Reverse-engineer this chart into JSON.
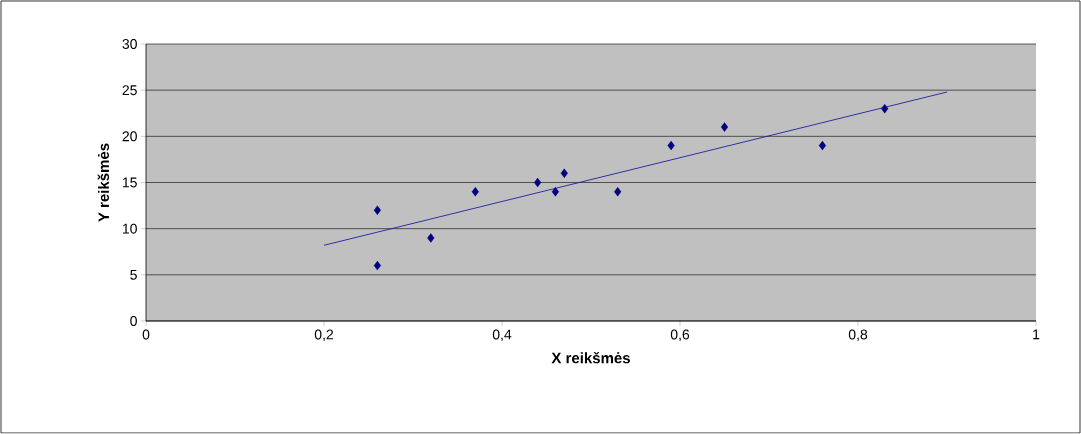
{
  "chart_data": {
    "type": "scatter",
    "xlabel": "X reikšmės",
    "ylabel": "Y reikšmės",
    "xlim": [
      0,
      1
    ],
    "ylim": [
      0,
      30
    ],
    "xticks": [
      0,
      {
        "value": 0.2,
        "label": "0,2"
      },
      {
        "value": 0.4,
        "label": "0,4"
      },
      {
        "value": 0.6,
        "label": "0,6"
      },
      {
        "value": 0.8,
        "label": "0,8"
      },
      1
    ],
    "yticks": [
      0,
      5,
      10,
      15,
      20,
      25,
      30
    ],
    "grid": "y",
    "marker": "diamond",
    "series": [
      {
        "color": "#000080",
        "x": [
          0.26,
          0.26,
          0.32,
          0.37,
          0.44,
          0.46,
          0.47,
          0.53,
          0.59,
          0.65,
          0.76,
          0.83
        ],
        "values": [
          12,
          6,
          9,
          14,
          15,
          14,
          16,
          14,
          19,
          21,
          19,
          23
        ]
      },
      {
        "type": "line",
        "color": "#2020a0",
        "marker": "none",
        "x": [
          0.2,
          0.9
        ],
        "values": [
          8.2,
          24.8
        ]
      }
    ]
  }
}
